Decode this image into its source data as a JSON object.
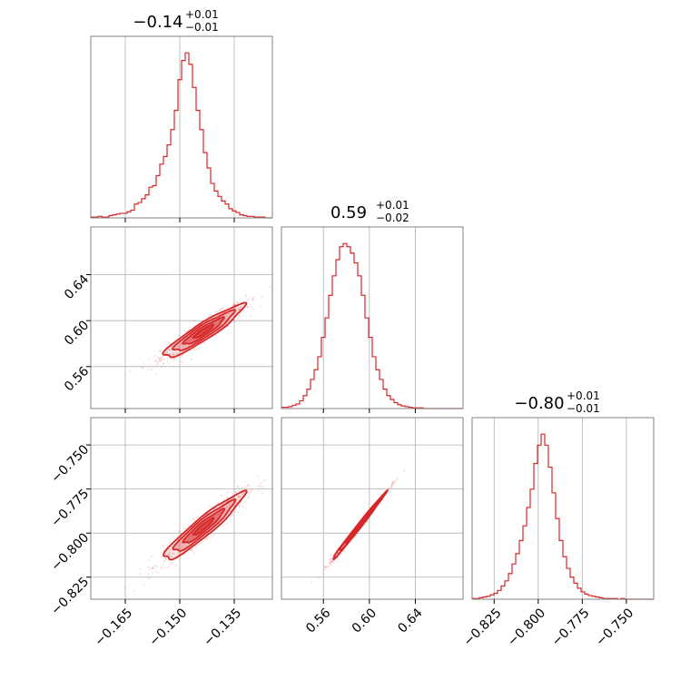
{
  "colors": {
    "series": "#d62728",
    "grid": "#b0b0b0",
    "frame": "#808080"
  },
  "chart_data": {
    "type": "corner",
    "parameters": [
      {
        "title_value": "−0.14",
        "title_plus": "+0.01",
        "title_minus": "−0.01",
        "range": [
          -0.1745,
          -0.1245
        ],
        "ticks": [
          -0.165,
          -0.15,
          -0.135
        ],
        "tick_labels": [
          "−0.165",
          "−0.150",
          "−0.135"
        ]
      },
      {
        "title_value": "0.59",
        "title_plus": "+0.01",
        "title_minus": "−0.02",
        "range": [
          0.5235,
          0.6815
        ],
        "ticks": [
          0.56,
          0.6,
          0.64
        ],
        "tick_labels": [
          "0.56",
          "0.60",
          "0.64"
        ]
      },
      {
        "title_value": "−0.80",
        "title_plus": "+0.01",
        "title_minus": "−0.01",
        "range": [
          -0.8375,
          -0.7345
        ],
        "ticks": [
          -0.825,
          -0.8,
          -0.775,
          -0.75
        ],
        "tick_labels": [
          "−0.825",
          "−0.800",
          "−0.775",
          "−0.750"
        ]
      }
    ],
    "histograms": [
      {
        "param": 0,
        "edges": [
          -0.1745,
          -0.1245
        ],
        "bin_count": 50,
        "counts": [
          1,
          1,
          2,
          1,
          1,
          3,
          4,
          5,
          6,
          6,
          8,
          10,
          18,
          20,
          25,
          30,
          40,
          42,
          55,
          70,
          80,
          95,
          115,
          140,
          180,
          205,
          215,
          200,
          170,
          140,
          115,
          85,
          65,
          45,
          35,
          28,
          22,
          18,
          12,
          9,
          7,
          4,
          3,
          2,
          2,
          1,
          1,
          1,
          0,
          0
        ]
      },
      {
        "param": 1,
        "edges": [
          0.5235,
          0.6815
        ],
        "bin_count": 50,
        "counts": [
          2,
          2,
          3,
          5,
          7,
          12,
          20,
          30,
          45,
          60,
          80,
          110,
          140,
          175,
          205,
          230,
          250,
          255,
          250,
          240,
          225,
          205,
          175,
          140,
          110,
          80,
          60,
          45,
          30,
          20,
          14,
          9,
          6,
          4,
          3,
          2,
          1,
          1,
          1,
          0,
          0,
          0,
          0,
          0,
          0,
          0,
          0,
          0,
          0,
          0
        ]
      },
      {
        "param": 2,
        "edges": [
          -0.8375,
          -0.7345
        ],
        "bin_count": 50,
        "counts": [
          1,
          1,
          2,
          3,
          4,
          6,
          8,
          12,
          18,
          25,
          35,
          48,
          62,
          80,
          100,
          125,
          150,
          185,
          210,
          225,
          210,
          180,
          145,
          110,
          80,
          58,
          42,
          30,
          22,
          15,
          10,
          7,
          5,
          4,
          3,
          2,
          1,
          1,
          1,
          1,
          0,
          1,
          0,
          0,
          0,
          0,
          0,
          0,
          0,
          0
        ]
      }
    ],
    "pairs": [
      {
        "x_param": 0,
        "y_param": 1,
        "center": [
          -0.1435,
          0.5905
        ],
        "sd": [
          0.0055,
          0.0115
        ],
        "corr": 0.93,
        "contour_levels": [
          0.5,
          1.0,
          1.5,
          2.0
        ]
      },
      {
        "x_param": 0,
        "y_param": 2,
        "center": [
          -0.1435,
          -0.7965
        ],
        "sd": [
          0.0055,
          0.0095
        ],
        "corr": 0.94,
        "contour_levels": [
          0.5,
          1.0,
          1.5,
          2.0
        ]
      },
      {
        "x_param": 1,
        "y_param": 2,
        "center": [
          0.5905,
          -0.7965
        ],
        "sd": [
          0.0115,
          0.0095
        ],
        "corr": 0.995,
        "contour_levels": [
          0.5,
          1.0,
          1.5,
          2.0
        ]
      }
    ],
    "grid": true,
    "xlabel": "",
    "ylabel": ""
  }
}
